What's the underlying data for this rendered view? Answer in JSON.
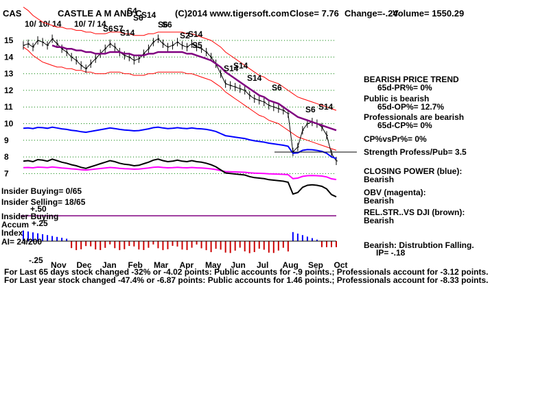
{
  "header": {
    "symbol": "CAS",
    "company": "CASTLE A M AND C",
    "copyright": "(C)2014 www.tigersoft.com",
    "close": "Close=  7.76",
    "change": "Change=-.24",
    "volume": "Volume= 1550.29",
    "date_label": "10/ 10/ 14",
    "date_label2": "10/ 7/ 14"
  },
  "colors": {
    "price": "#000000",
    "ma": "#800080",
    "band": "#ff0000",
    "closing_power": "#0000ff",
    "obv": "#ff00ff",
    "relstr": "#000000",
    "accum_pos": "#0000ff",
    "accum_neg": "#cc0000",
    "grid": "#008000"
  },
  "chart_data": [
    {
      "type": "line",
      "title": "",
      "x_ticks": [
        "Nov",
        "Dec",
        "Jan",
        "Feb",
        "Mar",
        "Apr",
        "May",
        "Jun",
        "Jul",
        "Aug",
        "Sep",
        "Oct"
      ],
      "y_ticks": [
        15,
        14,
        13,
        12,
        11,
        10,
        9,
        8,
        7
      ],
      "ylim": [
        6.6,
        16.2
      ],
      "grid": true,
      "series": [
        {
          "name": "",
          "values": [
            14.7,
            14.8,
            14.6,
            15.0,
            14.9,
            14.7,
            15.1,
            14.8,
            14.5,
            14.3,
            14.0,
            13.8,
            13.5,
            13.3,
            13.6,
            13.9,
            14.2,
            14.5,
            14.8,
            14.6,
            14.3,
            14.1,
            14.0,
            13.8,
            13.9,
            14.2,
            14.5,
            14.9,
            15.1,
            14.8,
            14.6,
            14.7,
            14.9,
            14.7,
            14.6,
            14.8,
            14.6,
            14.5,
            14.3,
            14.0,
            13.6,
            13.0,
            12.4,
            12.3,
            12.2,
            12.1,
            12.0,
            11.7,
            11.5,
            11.4,
            11.3,
            11.1,
            11.0,
            10.9,
            10.8,
            10.6,
            8.3,
            8.6,
            9.6,
            10.0,
            10.1,
            10.0,
            9.8,
            9.3,
            8.2,
            7.76
          ]
        },
        {
          "name": "",
          "values": [
            15.8,
            15.6,
            15.3,
            15.1,
            14.9,
            14.8,
            14.7,
            14.6,
            14.6,
            14.5,
            14.5,
            14.4,
            14.4,
            14.3,
            14.3,
            14.2,
            14.2,
            14.2,
            14.3,
            14.3,
            14.3,
            14.2,
            14.2,
            14.1,
            14.1,
            14.1,
            14.2,
            14.2,
            14.3,
            14.3,
            14.3,
            14.3,
            14.3,
            14.3,
            14.2,
            14.2,
            14.1,
            14.0,
            13.9,
            13.8,
            13.6,
            13.4,
            13.1,
            12.9,
            12.7,
            12.5,
            12.3,
            12.1,
            11.9,
            11.7,
            11.6,
            11.4,
            11.3,
            11.2,
            11.0,
            10.8,
            10.6,
            10.4,
            10.3,
            10.2,
            10.1,
            10.0,
            9.9,
            9.8,
            9.7,
            9.6
          ]
        }
      ]
    },
    {
      "type": "bar",
      "title": "",
      "x_ticks": [
        "Nov",
        "Dec",
        "Jan",
        "Feb",
        "Mar",
        "Apr",
        "May",
        "Jun",
        "Jul",
        "Aug",
        "Sep",
        "Oct"
      ],
      "y_ticks": [
        "+.25",
        "-.25"
      ],
      "ylim": [
        -0.25,
        0.25
      ]
    }
  ],
  "price_ticks": [
    "15",
    "14",
    "13",
    "12",
    "11",
    "10",
    "9",
    "8",
    "7"
  ],
  "month_labels": [
    "Nov",
    "Dec",
    "Jan",
    "Feb",
    "Mar",
    "Apr",
    "May",
    "Jun",
    "Jul",
    "Aug",
    "Sep",
    "Oct"
  ],
  "signals": [
    "S4",
    "S6",
    "S14",
    "S6",
    "S6",
    "S7",
    "S14",
    "S6",
    "S2",
    "S14",
    "S5",
    "S14",
    "S14",
    "S14",
    "S6",
    "S6",
    "S14"
  ],
  "right_panel": {
    "trend_title": "BEARISH PRICE TREND",
    "pr": "65d-PR%= 0%",
    "public": "Public is bearish",
    "op": "65d-OP%= 12.7%",
    "professionals": "Professionals are bearish",
    "cp": "65d-CP%= 0%",
    "cpvspr": "CP%vsPr%=  0%",
    "strength": "Strength Profess/Pub= 3.5",
    "closing_power": "CLOSING POWER (blue):",
    "closing_power_val": "Bearish",
    "obv": "OBV (magenta):",
    "obv_val": "Bearish",
    "relstr": "REL.STR..VS DJI (brown):",
    "relstr_val": "Bearish",
    "bearish_dist": "Bearish: Distrubtion Falling.",
    "ip": "IP= -.18"
  },
  "left_panel": {
    "insider_buying": "Insider Buying= 0/65",
    "insider_selling": "Insider Selling= 18/65",
    "plus50": "+.50",
    "insider_buying2": "Insider Buying",
    "accum": "Accum",
    "plus25": "+.25",
    "index": "Index",
    "ai": "AI= 24/200",
    "minus25": "-.25"
  },
  "footer": {
    "line1": "For Last 65 days stock changed -32% or -4.02 points:  Public accounts for -.9 points.;  Professionals account for -3.12 points.",
    "line2": "For Last year stock changed -47.4% or -6.87 points:  Public accounts for  1.46 points.;  Professionals account for -8.33 points."
  }
}
